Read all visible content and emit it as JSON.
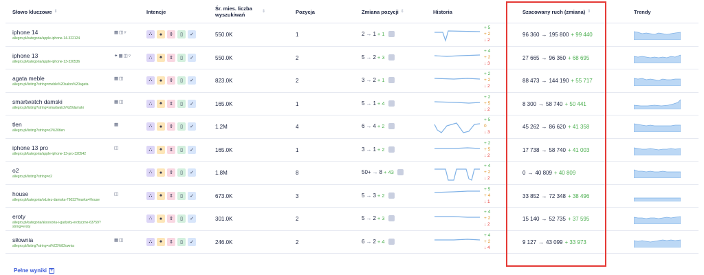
{
  "headers": {
    "keyword": "Słowo kluczowe",
    "intents": "Intencje",
    "volume_l1": "Śr. mies. liczba",
    "volume_l2": "wyszukiwań",
    "position": "Pozycja",
    "change": "Zmiana pozycji",
    "history": "Historia",
    "traffic": "Szacowany ruch (zmiana)",
    "trends": "Trendy"
  },
  "sort_icon": "sort-icon",
  "rows": [
    {
      "keyword": "iphone 14",
      "url": "allegro.pl/kategoria/apple-iphone-14-322124",
      "serp": "▦◫▿",
      "intents": [
        "nav",
        "info",
        "comm",
        "trans",
        "local"
      ],
      "volume": "550.0K",
      "position": "1",
      "change_from": "2",
      "change_to": "1",
      "change_delta": "+ 1",
      "hist_up": "+ 5",
      "hist_mid": "+ 2",
      "hist_down": "↓ 2",
      "traffic_from": "96 360",
      "traffic_to": "195 800",
      "traffic_delta": "+ 99 440"
    },
    {
      "keyword": "iphone 13",
      "url": "allegro.pl/kategoria/apple-iphone-13-320536",
      "serp": "✦▦◫▿",
      "intents": [
        "nav",
        "info",
        "comm",
        "trans",
        "local"
      ],
      "volume": "550.0K",
      "position": "2",
      "change_from": "5",
      "change_to": "2",
      "change_delta": "+ 3",
      "hist_up": "+ 4",
      "hist_mid": "+ 2",
      "hist_down": "↓ 3",
      "traffic_from": "27 665",
      "traffic_to": "96 360",
      "traffic_delta": "+ 68 695"
    },
    {
      "keyword": "agata meble",
      "url": "allegro.pl/listing?string=meble%20salon%20agata",
      "serp": "▦◫",
      "intents": [
        "nav",
        "info",
        "comm",
        "trans",
        "local"
      ],
      "volume": "823.0K",
      "position": "2",
      "change_from": "3",
      "change_to": "2",
      "change_delta": "+ 1",
      "hist_up": "+ 2",
      "hist_mid": "+ 2",
      "hist_down": "↓ 2",
      "traffic_from": "88 473",
      "traffic_to": "144 190",
      "traffic_delta": "+ 55 717"
    },
    {
      "keyword": "smartwatch damski",
      "url": "allegro.pl/listing?string=smartwatch%20damski",
      "serp": "▦◫",
      "intents": [
        "nav",
        "info",
        "comm",
        "trans",
        "local"
      ],
      "volume": "165.0K",
      "position": "1",
      "change_from": "5",
      "change_to": "1",
      "change_delta": "+ 4",
      "hist_up": "+ 2",
      "hist_mid": "+ 5",
      "hist_down": "↓ 2",
      "traffic_from": "8 300",
      "traffic_to": "58 740",
      "traffic_delta": "+ 50 441"
    },
    {
      "keyword": "tlen",
      "url": "allegro.pl/listing?string=o2%20tlen",
      "serp": "▦",
      "intents": [
        "nav",
        "info",
        "comm",
        "trans",
        "local"
      ],
      "volume": "1.2M",
      "position": "4",
      "change_from": "6",
      "change_to": "4",
      "change_delta": "+ 2",
      "hist_up": "+ 5",
      "hist_mid": "0",
      "hist_down": "↓ 3",
      "traffic_from": "45 262",
      "traffic_to": "86 620",
      "traffic_delta": "+ 41 358"
    },
    {
      "keyword": "iphone 13 pro",
      "url": "allegro.pl/kategoria/apple-iphone-13-pro-320542",
      "serp": "◫",
      "intents": [
        "nav",
        "info",
        "comm",
        "trans",
        "local"
      ],
      "volume": "165.0K",
      "position": "1",
      "change_from": "3",
      "change_to": "1",
      "change_delta": "+ 2",
      "hist_up": "+ 2",
      "hist_mid": "+ 5",
      "hist_down": "↓ 2",
      "traffic_from": "17 738",
      "traffic_to": "58 740",
      "traffic_delta": "+ 41 003"
    },
    {
      "keyword": "o2",
      "url": "allegro.pl/listing?string=o2",
      "serp": "",
      "intents": [
        "nav",
        "info",
        "comm",
        "trans",
        "local"
      ],
      "volume": "1.8M",
      "position": "8",
      "change_from": "50+",
      "change_to": "8",
      "change_delta": "+ 43",
      "hist_up": "+ 4",
      "hist_mid": "+ 2",
      "hist_down": "↓ 2",
      "traffic_from": "0",
      "traffic_to": "40 809",
      "traffic_delta": "+ 40 809"
    },
    {
      "keyword": "house",
      "url": "allegro.pl/kategoria/odziez-damska-76033?marka=House",
      "serp": "◫",
      "intents": [
        "nav",
        "info",
        "comm",
        "trans",
        "local"
      ],
      "volume": "673.0K",
      "position": "3",
      "change_from": "5",
      "change_to": "3",
      "change_delta": "+ 2",
      "hist_up": "+ 5",
      "hist_mid": "+ 4",
      "hist_down": "↓ 1",
      "traffic_from": "33 852",
      "traffic_to": "72 348",
      "traffic_delta": "+ 38 496"
    },
    {
      "keyword": "eroty",
      "url": "allegro.pl/kategoria/akcesoria-i-gadzety-erotyczne-63759?string=eroty",
      "serp": "",
      "intents": [
        "nav",
        "info",
        "comm",
        "trans",
        "local"
      ],
      "volume": "301.0K",
      "position": "2",
      "change_from": "5",
      "change_to": "2",
      "change_delta": "+ 3",
      "hist_up": "+ 4",
      "hist_mid": "+ 2",
      "hist_down": "↓ 2",
      "traffic_from": "15 140",
      "traffic_to": "52 735",
      "traffic_delta": "+ 37 595"
    },
    {
      "keyword": "siłownia",
      "url": "allegro.pl/listing?string=si%C5%82ownia",
      "serp": "▦◫",
      "intents": [
        "nav",
        "info",
        "comm",
        "trans",
        "local"
      ],
      "volume": "246.0K",
      "position": "2",
      "change_from": "6",
      "change_to": "2",
      "change_delta": "+ 4",
      "hist_up": "+ 4",
      "hist_mid": "+ 2",
      "hist_down": "↓ 4",
      "traffic_from": "9 127",
      "traffic_to": "43 099",
      "traffic_delta": "+ 33 973"
    }
  ],
  "intent_glyphs": {
    "nav": "⛬",
    "info": "♠",
    "comm": "⇕",
    "trans": "▯",
    "local": "✓"
  },
  "footer": {
    "more_label": "Pełne wyniki",
    "more_icon": "plus-square-icon"
  },
  "colors": {
    "accent": "#3b5ad8",
    "positive": "#4caf50",
    "negative": "#e53935",
    "highlight_box": "#e53935",
    "sparkline": "#7fb1e6",
    "trend_fill": "#bcd8f5"
  }
}
